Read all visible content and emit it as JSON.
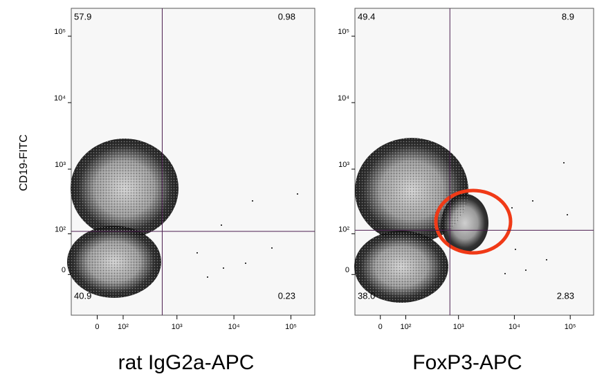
{
  "chart_data": [
    {
      "type": "density",
      "x_label": "rat IgG2a-APC",
      "y_label": "CD19-FITC",
      "values": [
        57.9,
        0.98,
        40.9,
        0.23
      ],
      "value_labels": [
        "57.9",
        "0.98",
        "40.9",
        "0.23"
      ],
      "gate_x": 550,
      "gate_y": 110,
      "gate_color": "#4b1d4f",
      "xlim": [
        -100,
        262144
      ],
      "ylim": [
        -100,
        262144
      ],
      "xticks": [
        {
          "value": 0,
          "label": "0"
        },
        {
          "value": 100,
          "label": "10²"
        },
        {
          "value": 1000,
          "label": "10³"
        },
        {
          "value": 10000,
          "label": "10⁴"
        },
        {
          "value": 100000,
          "label": "10⁵"
        }
      ],
      "yticks": [
        {
          "value": 0,
          "label": "0"
        },
        {
          "value": 100,
          "label": "10²"
        },
        {
          "value": 1000,
          "label": "10³"
        },
        {
          "value": 10000,
          "label": "10⁴"
        },
        {
          "value": 100000,
          "label": "10⁵"
        }
      ]
    },
    {
      "type": "density",
      "x_label": "FoxP3-APC",
      "values": [
        49.4,
        8.9,
        38.0,
        2.83
      ],
      "value_labels": [
        "49.4",
        "8.9",
        "38.0",
        "2.83"
      ],
      "gate_x": 700,
      "gate_y": 115,
      "gate_color": "#4b1d4f",
      "xlim": [
        -100,
        262144
      ],
      "ylim": [
        -100,
        262144
      ],
      "xticks": [
        {
          "value": 0,
          "label": "0"
        },
        {
          "value": 100,
          "label": "10²"
        },
        {
          "value": 1000,
          "label": "10³"
        },
        {
          "value": 10000,
          "label": "10⁴"
        },
        {
          "value": 100000,
          "label": "10⁵"
        }
      ],
      "yticks": [
        {
          "value": 0,
          "label": "0"
        },
        {
          "value": 100,
          "label": "10²"
        },
        {
          "value": 1000,
          "label": "10³"
        },
        {
          "value": 10000,
          "label": "10⁴"
        },
        {
          "value": 100000,
          "label": "10⁵"
        }
      ]
    }
  ]
}
